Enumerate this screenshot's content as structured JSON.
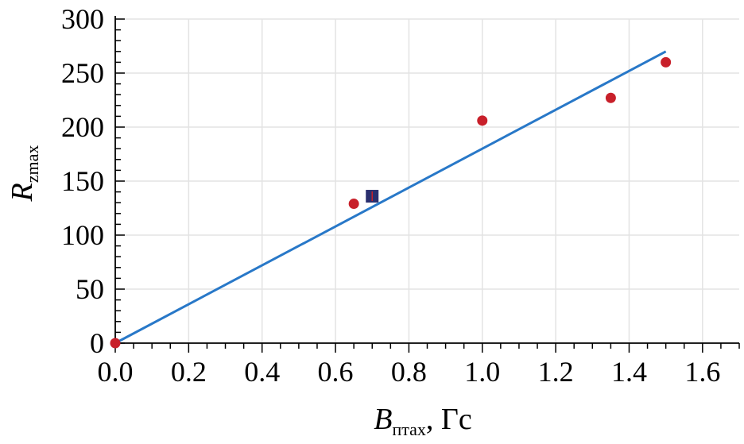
{
  "chart_data": {
    "type": "scatter",
    "xlabel": {
      "main": "B",
      "sub": "птах",
      "unit": ", Гс"
    },
    "ylabel": {
      "main": "R",
      "sub": "zmax"
    },
    "xlim": [
      0,
      1.7
    ],
    "ylim": [
      0,
      300
    ],
    "x_ticks": [
      0.0,
      0.2,
      0.4,
      0.6,
      0.8,
      1.0,
      1.2,
      1.4,
      1.6
    ],
    "x_tick_labels": [
      "0.0",
      "0.2",
      "0.4",
      "0.6",
      "0.8",
      "1.0",
      "1.2",
      "1.4",
      "1.6"
    ],
    "y_ticks": [
      0,
      50,
      100,
      150,
      200,
      250,
      300
    ],
    "y_tick_labels": [
      "0",
      "50",
      "100",
      "150",
      "200",
      "250",
      "300"
    ],
    "grid": true,
    "series": [
      {
        "marker": "circle",
        "color": "#c8202a",
        "points": [
          [
            0.0,
            0
          ],
          [
            0.65,
            129
          ],
          [
            1.0,
            206
          ],
          [
            1.35,
            227
          ],
          [
            1.5,
            260
          ]
        ]
      },
      {
        "marker": "square",
        "color": "#2a2f6e",
        "points": [
          [
            0.7,
            136
          ]
        ]
      },
      {
        "type": "line",
        "color": "#2878c8",
        "points": [
          [
            0.0,
            0
          ],
          [
            1.5,
            270
          ]
        ]
      }
    ]
  }
}
